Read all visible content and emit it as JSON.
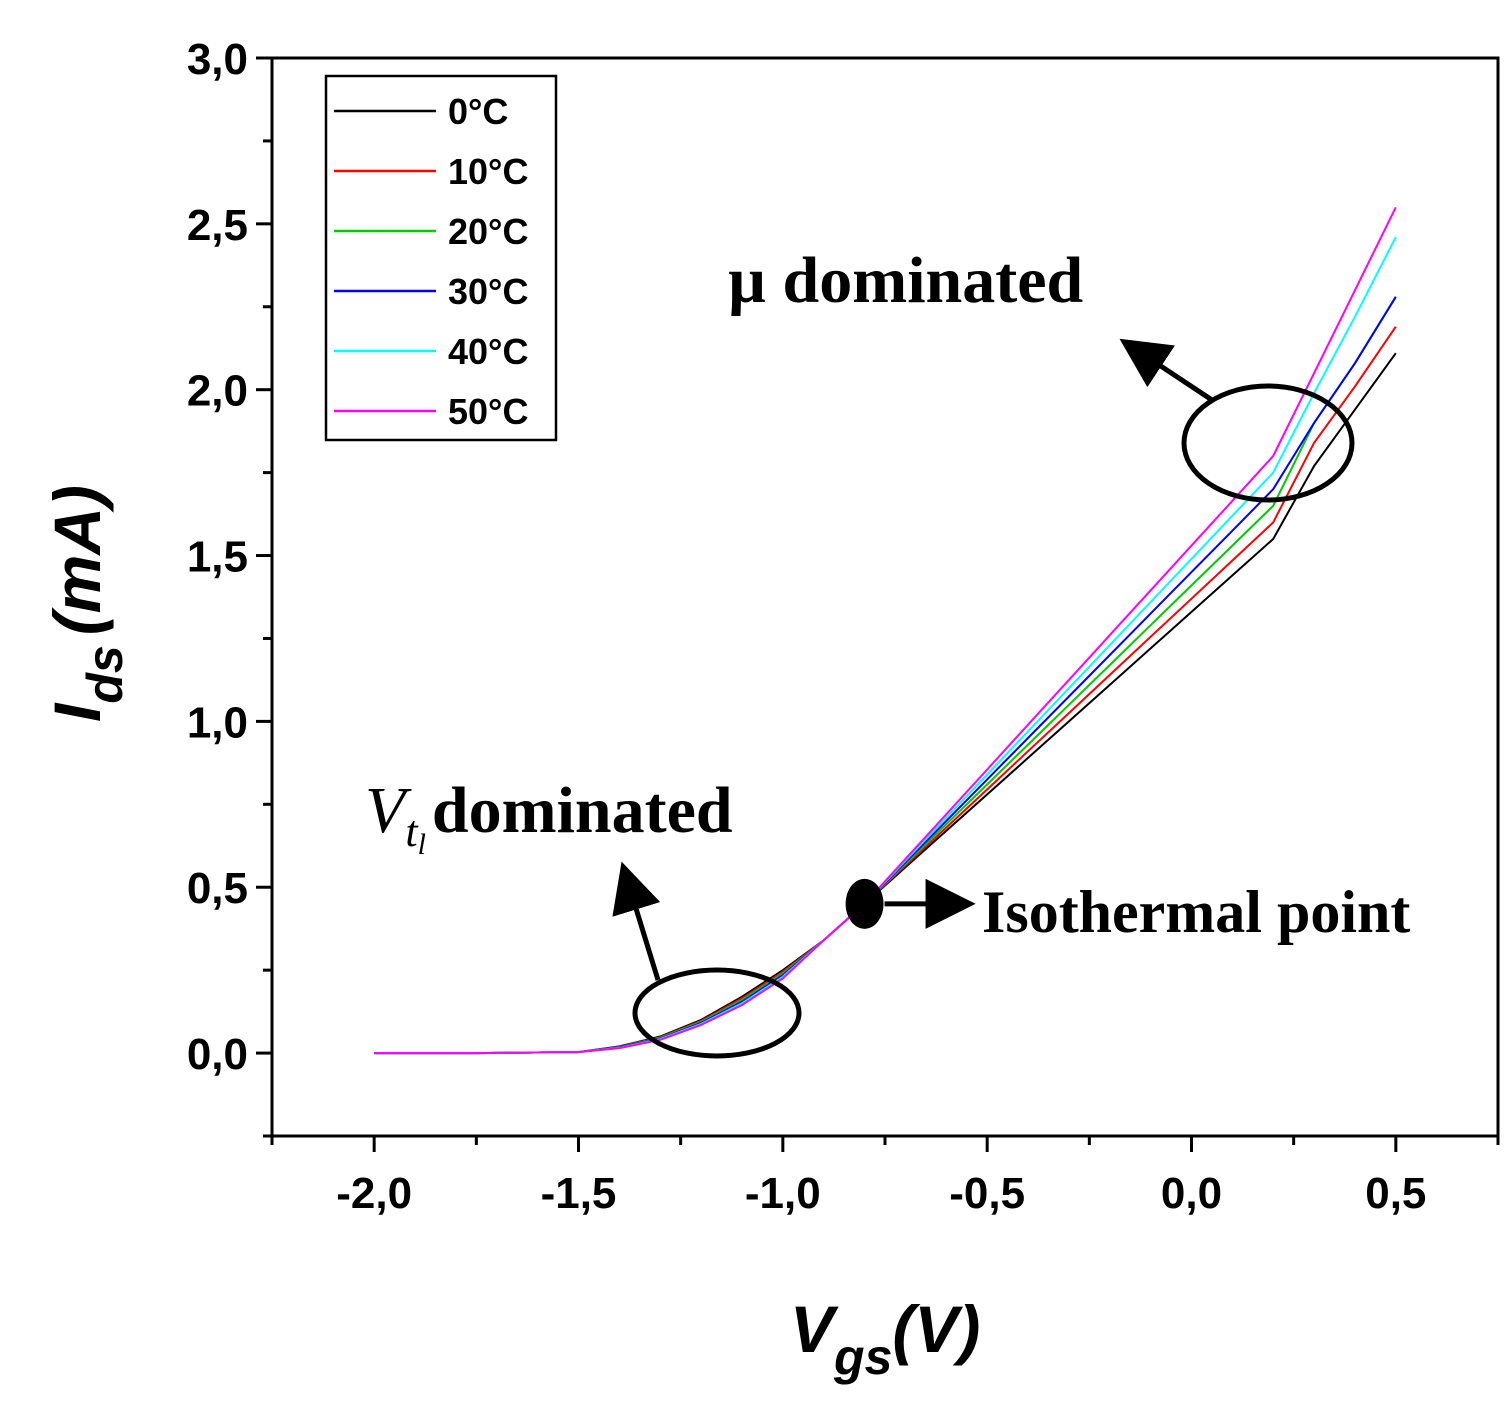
{
  "chart_data": {
    "type": "line",
    "title": "",
    "xlabel": {
      "main": "V",
      "sub": "gs",
      "unit": "(V)"
    },
    "ylabel": {
      "main": "I",
      "sub": "ds",
      "unit": "(mA)"
    },
    "xlim": [
      -2.25,
      0.75
    ],
    "ylim": [
      -0.25,
      3.0
    ],
    "x_ticks": [
      -2.0,
      -1.5,
      -1.0,
      -0.5,
      0.0,
      0.5
    ],
    "x_tick_labels": [
      "-2,0",
      "-1,5",
      "-1,0",
      "-0,5",
      "0,0",
      "0,5"
    ],
    "y_ticks": [
      0.0,
      0.5,
      1.0,
      1.5,
      2.0,
      2.5,
      3.0
    ],
    "y_tick_labels": [
      "0,0",
      "0,5",
      "1,0",
      "1,5",
      "2,0",
      "2,5",
      "3,0"
    ],
    "legend_position": "top-left",
    "x": [
      -2.0,
      -1.75,
      -1.5,
      -1.4,
      -1.3,
      -1.2,
      -1.1,
      -1.0,
      -0.9,
      -0.8,
      -0.7,
      -0.6,
      -0.5,
      -0.4,
      -0.3,
      -0.2,
      -0.1,
      0.0,
      0.1,
      0.2,
      0.3,
      0.4,
      0.5
    ],
    "series": [
      {
        "name": "0°C",
        "color": "#000000",
        "values": [
          0.0,
          0.0,
          0.003,
          0.02,
          0.05,
          0.1,
          0.17,
          0.25,
          0.34,
          0.45,
          0.56,
          0.67,
          0.78,
          0.89,
          1.0,
          1.11,
          1.22,
          1.33,
          1.44,
          1.55,
          1.77,
          1.94,
          2.11
        ]
      },
      {
        "name": "10°C",
        "color": "#ff0000",
        "values": [
          0.0,
          0.0,
          0.003,
          0.019,
          0.048,
          0.097,
          0.165,
          0.245,
          0.34,
          0.45,
          0.565,
          0.68,
          0.795,
          0.91,
          1.025,
          1.14,
          1.255,
          1.37,
          1.485,
          1.6,
          1.84,
          2.01,
          2.19
        ]
      },
      {
        "name": "20°C",
        "color": "#00cc00",
        "values": [
          0.0,
          0.0,
          0.003,
          0.018,
          0.046,
          0.094,
          0.16,
          0.24,
          0.34,
          0.45,
          0.57,
          0.69,
          0.81,
          0.93,
          1.05,
          1.17,
          1.29,
          1.41,
          1.53,
          1.65,
          1.9,
          2.08,
          2.28
        ]
      },
      {
        "name": "30°C",
        "color": "#0000ff",
        "values": [
          0.0,
          0.0,
          0.003,
          0.017,
          0.044,
          0.091,
          0.155,
          0.235,
          0.34,
          0.45,
          0.575,
          0.7,
          0.825,
          0.95,
          1.075,
          1.2,
          1.325,
          1.45,
          1.575,
          1.7,
          1.9,
          2.08,
          2.28
        ]
      },
      {
        "name": "40°C",
        "color": "#00ffff",
        "values": [
          0.0,
          0.0,
          0.003,
          0.016,
          0.042,
          0.088,
          0.15,
          0.23,
          0.34,
          0.45,
          0.58,
          0.71,
          0.84,
          0.97,
          1.1,
          1.23,
          1.36,
          1.49,
          1.62,
          1.75,
          1.99,
          2.22,
          2.46
        ]
      },
      {
        "name": "50°C",
        "color": "#ff00ff",
        "values": [
          0.0,
          0.0,
          0.003,
          0.015,
          0.04,
          0.085,
          0.145,
          0.225,
          0.34,
          0.45,
          0.585,
          0.72,
          0.855,
          0.99,
          1.125,
          1.26,
          1.395,
          1.53,
          1.665,
          1.8,
          2.05,
          2.3,
          2.55
        ]
      }
    ],
    "annotations": {
      "mu": {
        "text": "µ dominated"
      },
      "vt": {
        "main": "V",
        "sub": "t",
        "subsub": "l",
        "text": "dominated"
      },
      "iso": {
        "text": "Isothermal point",
        "x": -0.8,
        "y": 0.45
      }
    }
  }
}
